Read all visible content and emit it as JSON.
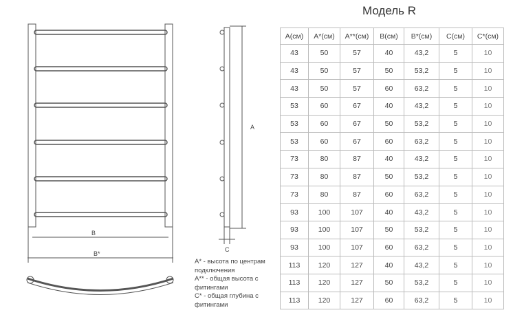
{
  "title": "Модель R",
  "table": {
    "headers": [
      "A(см)",
      "A*(см)",
      "A**(см)",
      "B(см)",
      "B*(см)",
      "C(см)",
      "C*(см)"
    ],
    "rows": [
      [
        "43",
        "50",
        "57",
        "40",
        "43,2",
        "5",
        "10"
      ],
      [
        "43",
        "50",
        "57",
        "50",
        "53,2",
        "5",
        "10"
      ],
      [
        "43",
        "50",
        "57",
        "60",
        "63,2",
        "5",
        "10"
      ],
      [
        "53",
        "60",
        "67",
        "40",
        "43,2",
        "5",
        "10"
      ],
      [
        "53",
        "60",
        "67",
        "50",
        "53,2",
        "5",
        "10"
      ],
      [
        "53",
        "60",
        "67",
        "60",
        "63,2",
        "5",
        "10"
      ],
      [
        "73",
        "80",
        "87",
        "40",
        "43,2",
        "5",
        "10"
      ],
      [
        "73",
        "80",
        "87",
        "50",
        "53,2",
        "5",
        "10"
      ],
      [
        "73",
        "80",
        "87",
        "60",
        "63,2",
        "5",
        "10"
      ],
      [
        "93",
        "100",
        "107",
        "40",
        "43,2",
        "5",
        "10"
      ],
      [
        "93",
        "100",
        "107",
        "50",
        "53,2",
        "5",
        "10"
      ],
      [
        "93",
        "100",
        "107",
        "60",
        "63,2",
        "5",
        "10"
      ],
      [
        "113",
        "120",
        "127",
        "40",
        "43,2",
        "5",
        "10"
      ],
      [
        "113",
        "120",
        "127",
        "50",
        "53,2",
        "5",
        "10"
      ],
      [
        "113",
        "120",
        "127",
        "60",
        "63,2",
        "5",
        "10"
      ]
    ]
  },
  "drawing": {
    "label_b": "B",
    "label_b_star": "B*",
    "label_a": "A",
    "label_c": "C"
  },
  "notes": [
    "A* - высота по центрам подключения",
    "A** - общая высота с фитингами",
    "C* - общая глубина с фитингами"
  ]
}
